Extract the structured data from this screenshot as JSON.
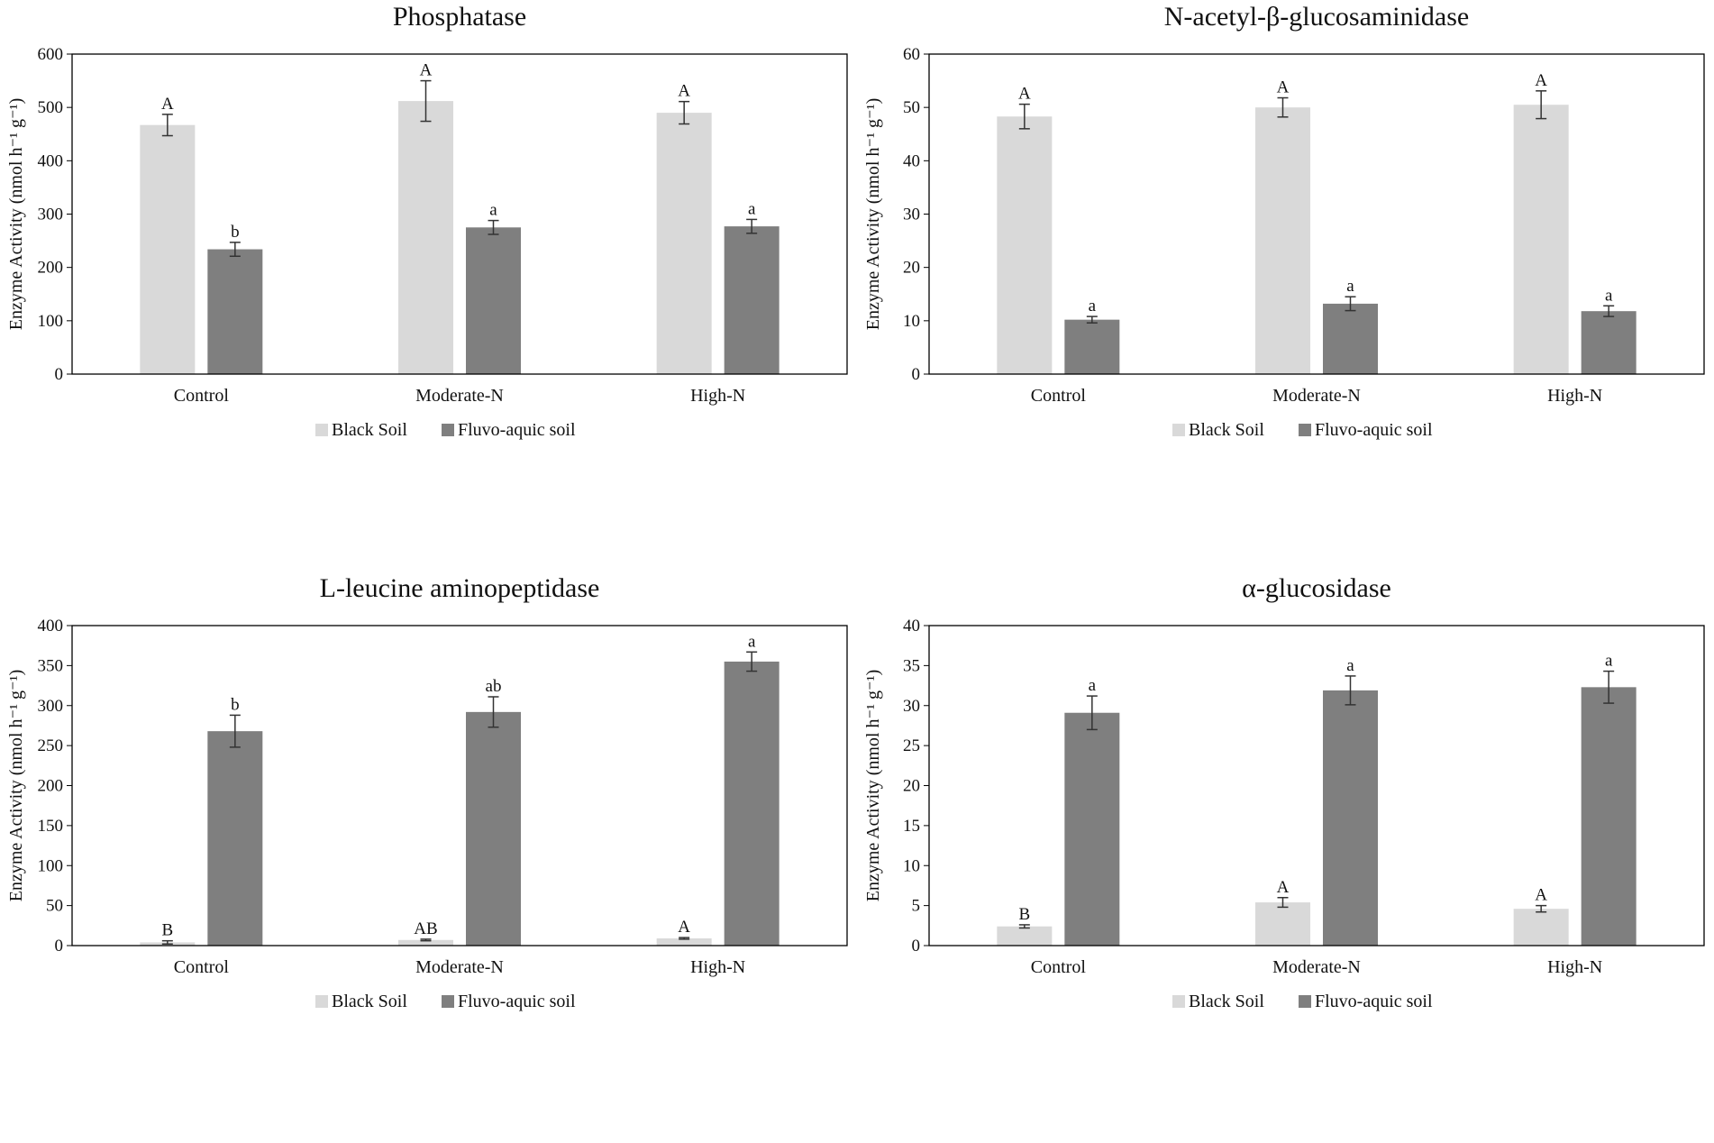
{
  "colors": {
    "black_soil": "#d9d9d9",
    "fluvo_aquic": "#7f7f7f",
    "axis": "#000000",
    "error_bar": "#333333"
  },
  "chart_data": [
    {
      "type": "bar",
      "title": "Phosphatase",
      "xlabel": "",
      "ylabel": "Enzyme Activity (nmol h⁻¹ g⁻¹)",
      "ylim": [
        0,
        600
      ],
      "yticks": [
        0,
        100,
        200,
        300,
        400,
        500,
        600
      ],
      "categories": [
        "Control",
        "Moderate-N",
        "High-N"
      ],
      "legend_position": "bottom",
      "series": [
        {
          "name": "Black Soil",
          "color": "#d9d9d9",
          "values": [
            467,
            512,
            490
          ],
          "errors": [
            20,
            38,
            21
          ],
          "letters": [
            "A",
            "A",
            "A"
          ]
        },
        {
          "name": "Fluvo-aquic soil",
          "color": "#7f7f7f",
          "values": [
            234,
            275,
            277
          ],
          "errors": [
            13,
            13,
            13
          ],
          "letters": [
            "b",
            "a",
            "a"
          ]
        }
      ]
    },
    {
      "type": "bar",
      "title": "N-acetyl-β-glucosaminidase",
      "xlabel": "",
      "ylabel": "Enzyme Activity (nmol h⁻¹ g⁻¹)",
      "ylim": [
        0,
        60
      ],
      "yticks": [
        0,
        10,
        20,
        30,
        40,
        50,
        60
      ],
      "categories": [
        "Control",
        "Moderate-N",
        "High-N"
      ],
      "legend_position": "bottom",
      "series": [
        {
          "name": "Black Soil",
          "color": "#d9d9d9",
          "values": [
            48.3,
            50,
            50.5
          ],
          "errors": [
            2.3,
            1.8,
            2.6
          ],
          "letters": [
            "A",
            "A",
            "A"
          ]
        },
        {
          "name": "Fluvo-aquic soil",
          "color": "#7f7f7f",
          "values": [
            10.2,
            13.2,
            11.8
          ],
          "errors": [
            0.6,
            1.3,
            1.0
          ],
          "letters": [
            "a",
            "a",
            "a"
          ]
        }
      ]
    },
    {
      "type": "bar",
      "title": "L-leucine aminopeptidase",
      "xlabel": "",
      "ylabel": "Enzyme Activity (nmol h⁻¹ g⁻¹)",
      "ylim": [
        0,
        400
      ],
      "yticks": [
        0,
        50,
        100,
        150,
        200,
        250,
        300,
        350,
        400
      ],
      "categories": [
        "Control",
        "Moderate-N",
        "High-N"
      ],
      "legend_position": "bottom",
      "series": [
        {
          "name": "Black Soil",
          "color": "#d9d9d9",
          "values": [
            4,
            7,
            9
          ],
          "errors": [
            2,
            1,
            1
          ],
          "letters": [
            "B",
            "AB",
            "A"
          ]
        },
        {
          "name": "Fluvo-aquic soil",
          "color": "#7f7f7f",
          "values": [
            268,
            292,
            355
          ],
          "errors": [
            20,
            19,
            12
          ],
          "letters": [
            "b",
            "ab",
            "a"
          ]
        }
      ]
    },
    {
      "type": "bar",
      "title": "α-glucosidase",
      "xlabel": "",
      "ylabel": "Enzyme Activity (nmol h⁻¹ g⁻¹)",
      "ylim": [
        0,
        40
      ],
      "yticks": [
        0,
        5,
        10,
        15,
        20,
        25,
        30,
        35,
        40
      ],
      "categories": [
        "Control",
        "Moderate-N",
        "High-N"
      ],
      "legend_position": "bottom",
      "series": [
        {
          "name": "Black Soil",
          "color": "#d9d9d9",
          "values": [
            2.4,
            5.4,
            4.6
          ],
          "errors": [
            0.2,
            0.6,
            0.4
          ],
          "letters": [
            "B",
            "A",
            "A"
          ]
        },
        {
          "name": "Fluvo-aquic soil",
          "color": "#7f7f7f",
          "values": [
            29.1,
            31.9,
            32.3
          ],
          "errors": [
            2.1,
            1.8,
            2.0
          ],
          "letters": [
            "a",
            "a",
            "a"
          ]
        }
      ]
    }
  ]
}
